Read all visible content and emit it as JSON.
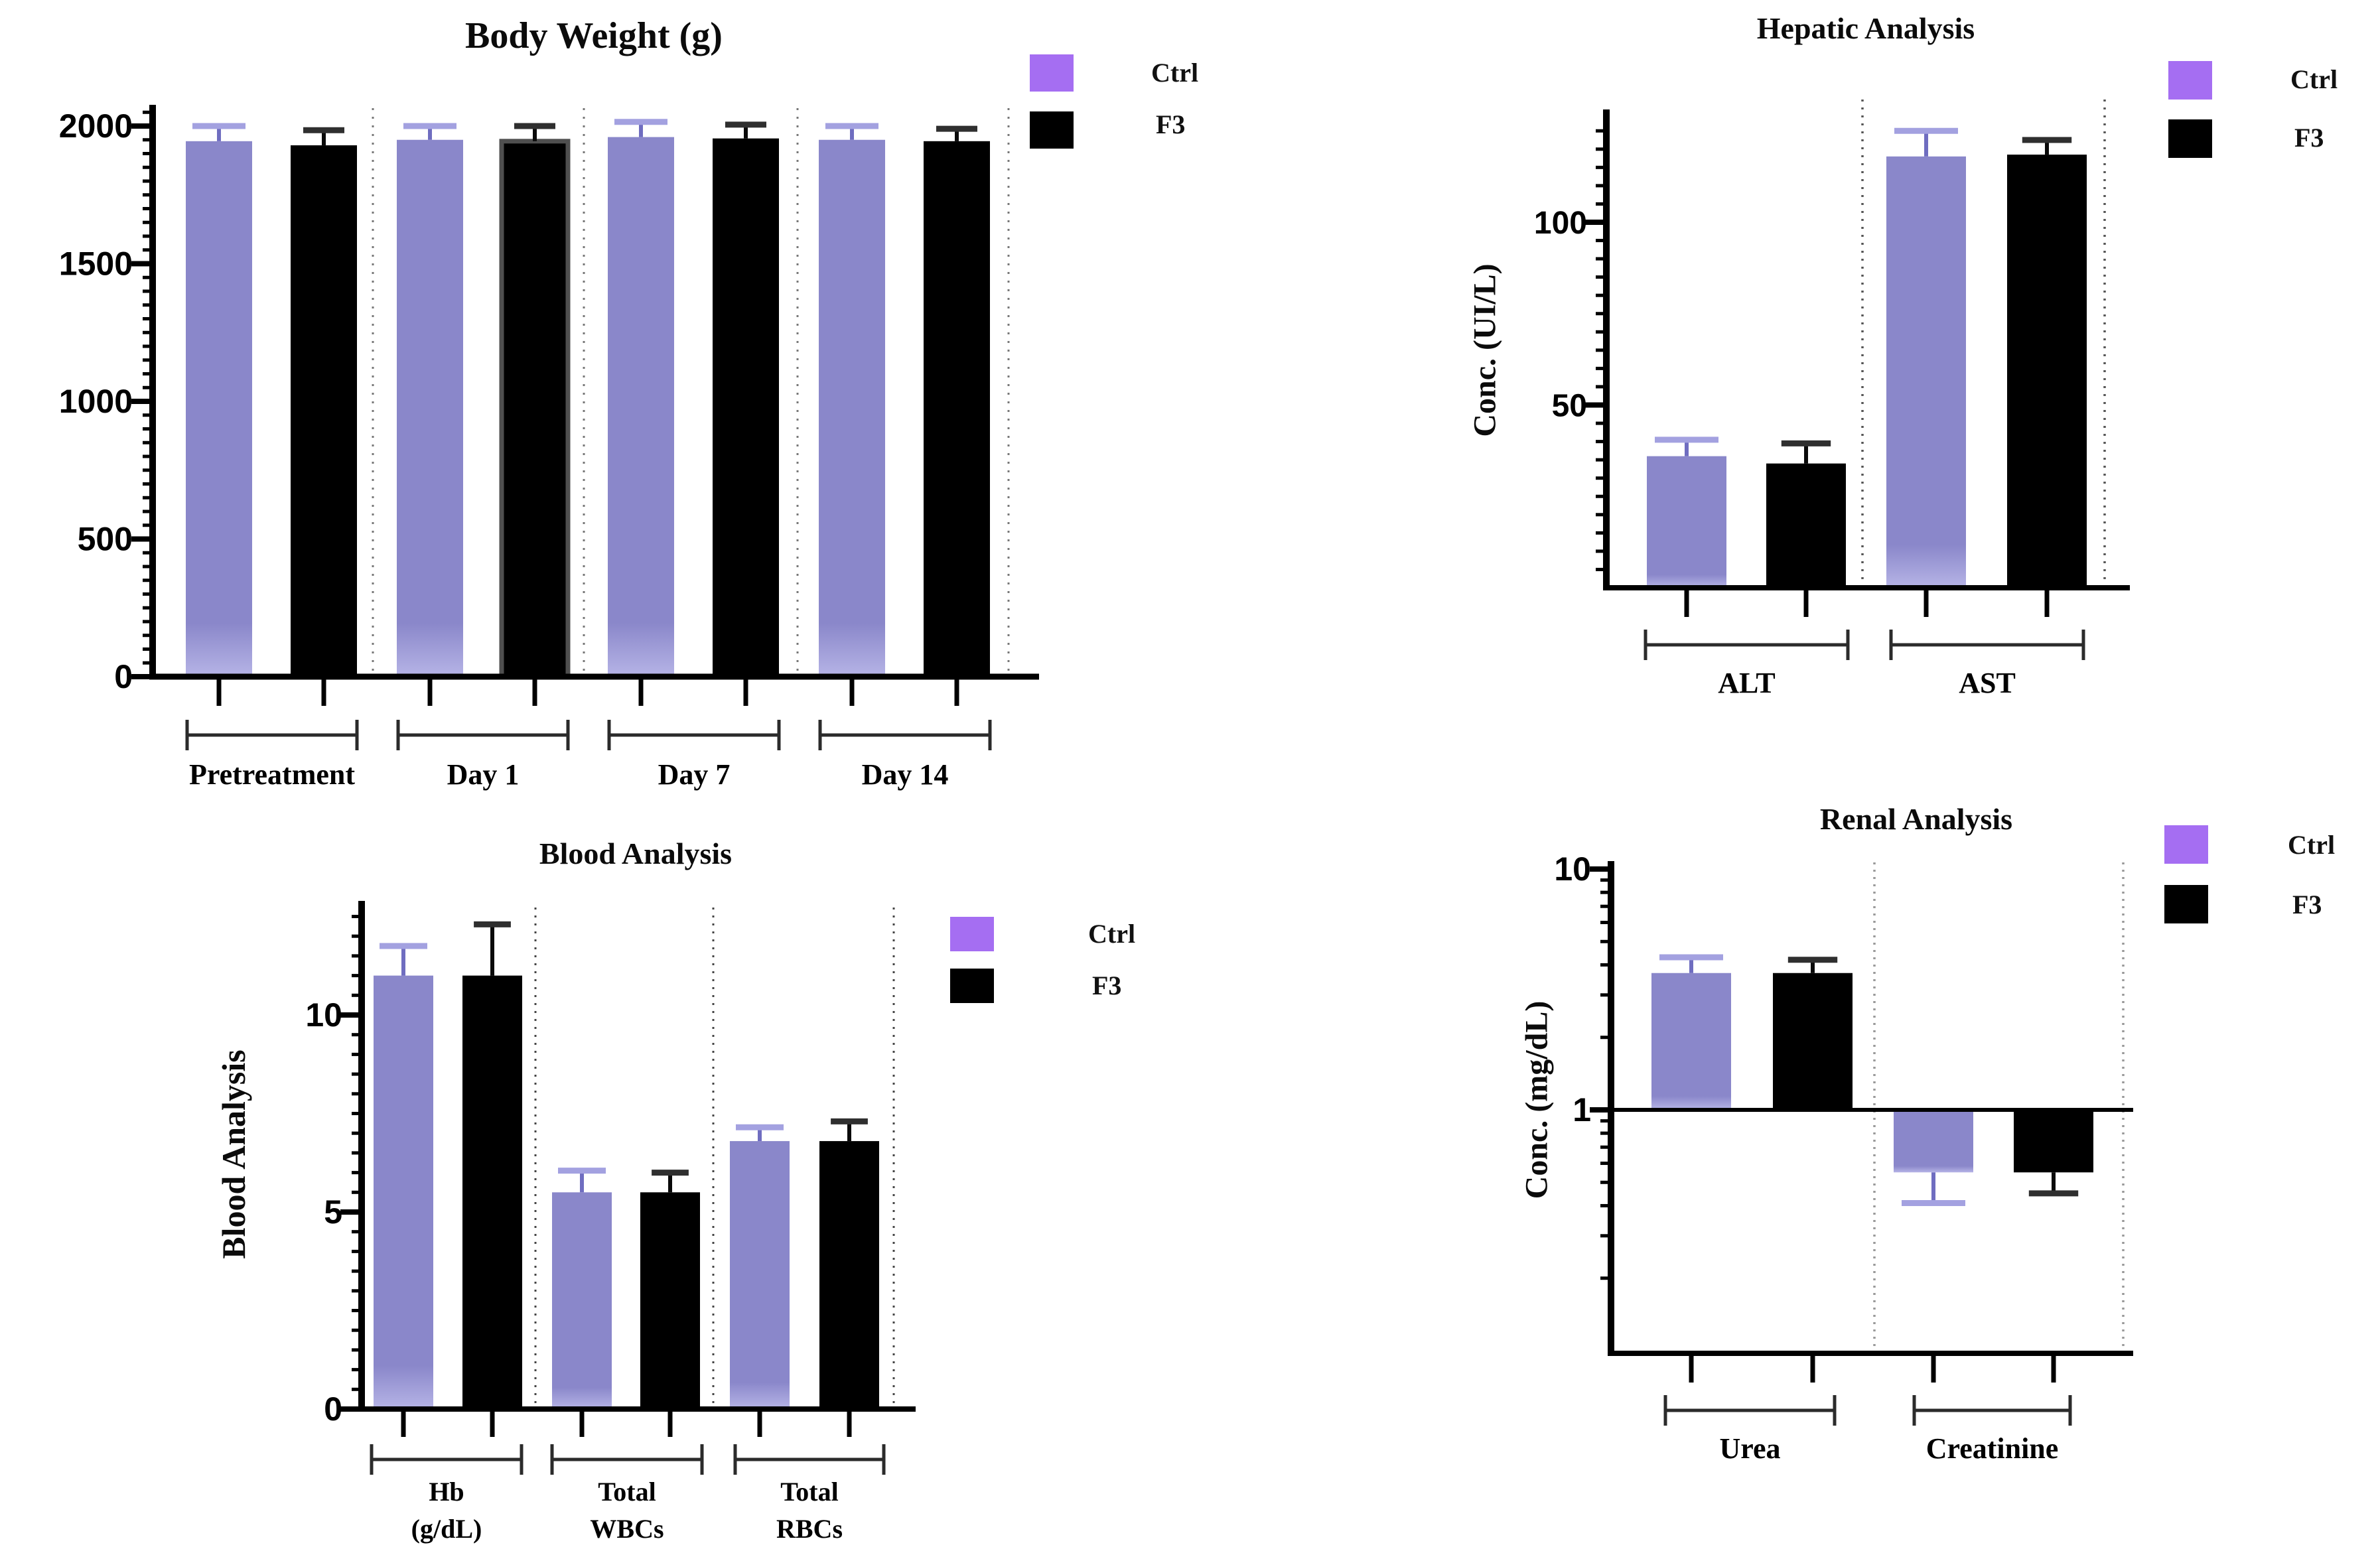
{
  "page": {
    "background": "#ffffff"
  },
  "colors": {
    "bar_ctrl": "#8a87ca",
    "bar_ctrl_fade": "#b6b4e6",
    "bar_f3": "#000000",
    "legend_ctrl": "#a56ef2",
    "legend_f3": "#000000",
    "err_ctrl": "#6f6dc0",
    "err_ctrl_cap": "#a3a1e0",
    "err_f3": "#0a0a0a",
    "err_f3_cap": "#2f2f2f",
    "axis": "#000000",
    "bracket": "#2b2b2b"
  },
  "legend": {
    "ctrl": "Ctrl",
    "f3": "F3"
  },
  "chart_data": [
    {
      "type": "bar",
      "title": "Body Weight (g)",
      "ylabel": "",
      "categories": [
        "Pretreatment",
        "Day 1",
        "Day 7",
        "Day 14"
      ],
      "series": [
        {
          "name": "Ctrl",
          "values": [
            1945,
            1950,
            1960,
            1950
          ],
          "errors": [
            55,
            50,
            55,
            50
          ]
        },
        {
          "name": "F3",
          "values": [
            1930,
            1945,
            1955,
            1945
          ],
          "errors": [
            55,
            55,
            50,
            45
          ]
        }
      ],
      "ylim": [
        0,
        2100
      ],
      "yticks": [
        "0",
        "500",
        "1000",
        "1500",
        "2000"
      ],
      "yscale": "linear",
      "grid": false,
      "legend_position": "top-right"
    },
    {
      "type": "bar",
      "title": "Hepatic Analysis",
      "ylabel": "Conc. (UI/L)",
      "categories": [
        "ALT",
        "AST"
      ],
      "series": [
        {
          "name": "Ctrl",
          "values": [
            36,
            118
          ],
          "errors": [
            4.5,
            7
          ]
        },
        {
          "name": "F3",
          "values": [
            34,
            118.5
          ],
          "errors": [
            5.5,
            4
          ]
        }
      ],
      "ylim": [
        0,
        130
      ],
      "yticks": [
        "50",
        "100"
      ],
      "yscale": "linear",
      "grid": false,
      "legend_position": "top-right"
    },
    {
      "type": "bar",
      "title": "Blood Analysis",
      "ylabel": "Blood Analysis",
      "categories": [
        "Hb\n(g/dL)",
        "Total\nWBCs",
        "Total\nRBCs"
      ],
      "series": [
        {
          "name": "Ctrl",
          "values": [
            11.0,
            5.5,
            6.8
          ],
          "errors": [
            0.75,
            0.55,
            0.35
          ]
        },
        {
          "name": "F3",
          "values": [
            11.0,
            5.5,
            6.8
          ],
          "errors": [
            1.3,
            0.5,
            0.5
          ]
        }
      ],
      "ylim": [
        0,
        12.9
      ],
      "yticks": [
        "0",
        "5",
        "10"
      ],
      "yscale": "linear",
      "grid": false,
      "legend_position": "top-right"
    },
    {
      "type": "bar",
      "title": "Renal Analysis",
      "ylabel": "Conc. (mg/dL)",
      "categories": [
        "Urea",
        "Creatinine"
      ],
      "series": [
        {
          "name": "Ctrl",
          "values": [
            3.7,
            0.55
          ],
          "errors": [
            0.6,
            0.14
          ]
        },
        {
          "name": "F3",
          "values": [
            3.7,
            0.55
          ],
          "errors": [
            0.5,
            0.1
          ]
        }
      ],
      "ylim": [
        0.1,
        10
      ],
      "yticks": [
        "1",
        "10"
      ],
      "yscale": "log",
      "baseline": 1,
      "grid": false,
      "legend_position": "top-right"
    }
  ]
}
